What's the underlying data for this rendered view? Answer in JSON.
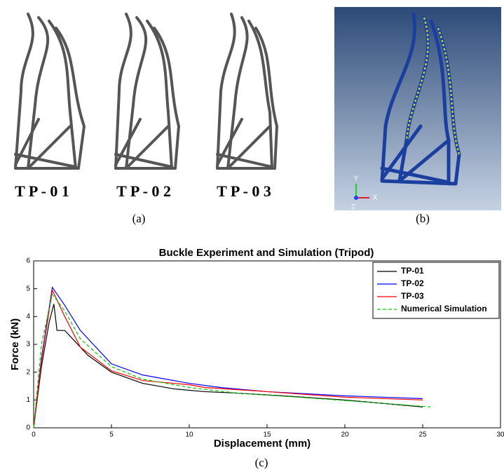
{
  "panel_a": {
    "labels": [
      "T P - 0 1",
      "T P - 0 2",
      "T P - 0 3"
    ],
    "caption": "(a)"
  },
  "panel_b": {
    "axes": [
      "Y",
      "X",
      "Z"
    ],
    "caption": "(b)"
  },
  "chart_data": {
    "type": "line",
    "title": "Buckle Experiment and Simulation (Tripod)",
    "xlabel": "Displacement (mm)",
    "ylabel": "Force (kN)",
    "caption": "(c)",
    "xlim": [
      0,
      30
    ],
    "xticks": [
      0,
      5,
      10,
      15,
      20,
      25,
      30
    ],
    "ylim": [
      0,
      6
    ],
    "yticks": [
      0,
      1,
      2,
      3,
      4,
      5,
      6
    ],
    "grid": false,
    "legend": "upper right",
    "series": [
      {
        "name": "TP-01",
        "color": "#000000",
        "dash": false,
        "x": [
          0,
          0.5,
          1.0,
          1.3,
          1.5,
          2,
          2.5,
          3.5,
          5,
          7,
          9,
          11,
          13,
          16,
          20,
          23,
          25
        ],
        "values": [
          0,
          2.2,
          3.8,
          4.45,
          3.5,
          3.5,
          3.2,
          2.6,
          2.0,
          1.6,
          1.4,
          1.3,
          1.25,
          1.15,
          1.0,
          0.85,
          0.75
        ]
      },
      {
        "name": "TP-02",
        "color": "#0000ff",
        "dash": false,
        "x": [
          0,
          0.5,
          1.2,
          2,
          3,
          5,
          7,
          10,
          12,
          15,
          20,
          25
        ],
        "values": [
          0,
          2.5,
          5.05,
          4.4,
          3.5,
          2.3,
          1.9,
          1.6,
          1.45,
          1.3,
          1.15,
          1.05
        ]
      },
      {
        "name": "TP-03",
        "color": "#ff0000",
        "dash": false,
        "x": [
          0,
          0.5,
          1.2,
          2,
          3,
          5,
          7,
          10,
          11,
          15,
          20,
          25
        ],
        "values": [
          0,
          2.4,
          4.95,
          4.0,
          2.9,
          2.05,
          1.7,
          1.55,
          1.45,
          1.3,
          1.1,
          1.0
        ]
      },
      {
        "name": "Numerical Simulation",
        "color": "#00cc00",
        "dash": true,
        "x": [
          0,
          0.5,
          1.2,
          2,
          3,
          5,
          7,
          10,
          13,
          17,
          22,
          25.5
        ],
        "values": [
          0,
          3.0,
          4.8,
          4.2,
          3.2,
          2.2,
          1.75,
          1.45,
          1.25,
          1.1,
          0.9,
          0.75
        ]
      }
    ]
  }
}
